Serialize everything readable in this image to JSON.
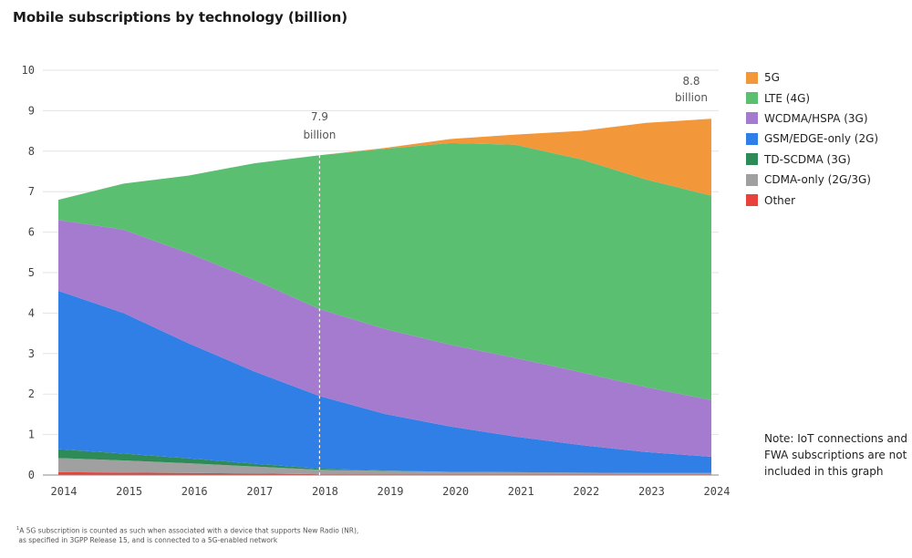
{
  "chart_data": {
    "type": "area",
    "title": "Mobile subscriptions by technology (billion)",
    "xlabel": "",
    "ylabel": "",
    "x": [
      "2014",
      "2015",
      "2016",
      "2017",
      "2018",
      "2019",
      "2020",
      "2021",
      "2022",
      "2023",
      "2024"
    ],
    "ylim": [
      0,
      10
    ],
    "yticks": [
      "0",
      "1",
      "2",
      "3",
      "4",
      "5",
      "6",
      "7",
      "8",
      "9",
      "10"
    ],
    "grid": true,
    "legend_position": "right",
    "stacked": true,
    "series": [
      {
        "name": "Other",
        "color": "#e8423c",
        "values": [
          0.07,
          0.06,
          0.05,
          0.04,
          0.02,
          0.02,
          0.02,
          0.02,
          0.02,
          0.02,
          0.02
        ]
      },
      {
        "name": "CDMA-only (2G/3G)",
        "color": "#a0a0a0",
        "values": [
          0.35,
          0.3,
          0.24,
          0.17,
          0.11,
          0.08,
          0.06,
          0.05,
          0.04,
          0.03,
          0.03
        ]
      },
      {
        "name": "TD-SCDMA (3G)",
        "color": "#2e8b57",
        "values": [
          0.22,
          0.17,
          0.12,
          0.07,
          0.03,
          0.01,
          0.0,
          0.0,
          0.0,
          0.0,
          0.0
        ]
      },
      {
        "name": "GSM/EDGE-only (2G)",
        "color": "#2f7fe6",
        "values": [
          3.91,
          3.47,
          2.84,
          2.28,
          1.79,
          1.4,
          1.12,
          0.88,
          0.68,
          0.52,
          0.4
        ]
      },
      {
        "name": "WCDMA/HSPA (3G)",
        "color": "#a57bd0",
        "values": [
          1.75,
          2.06,
          2.23,
          2.26,
          2.15,
          2.1,
          2.02,
          1.94,
          1.8,
          1.6,
          1.4
        ]
      },
      {
        "name": "LTE (4G)",
        "color": "#5bbf72",
        "values": [
          0.5,
          1.14,
          1.92,
          2.88,
          3.8,
          4.45,
          4.98,
          5.27,
          5.26,
          5.13,
          5.05
        ]
      },
      {
        "name": "5G",
        "color": "#f2973a",
        "values": [
          0,
          0,
          0,
          0,
          0,
          0.02,
          0.1,
          0.25,
          0.7,
          1.4,
          1.9
        ]
      }
    ],
    "annotations": [
      {
        "x": "2018",
        "line1": "7.9",
        "line2": "billion"
      },
      {
        "x": "2024",
        "line1": "8.8",
        "line2": "billion"
      }
    ]
  },
  "legend": {
    "items": [
      {
        "label": "5G",
        "color": "#f2973a"
      },
      {
        "label": "LTE (4G)",
        "color": "#5bbf72"
      },
      {
        "label": "WCDMA/HSPA (3G)",
        "color": "#a57bd0"
      },
      {
        "label": "GSM/EDGE-only (2G)",
        "color": "#2f7fe6"
      },
      {
        "label": "TD-SCDMA (3G)",
        "color": "#2e8b57"
      },
      {
        "label": "CDMA-only (2G/3G)",
        "color": "#a0a0a0"
      },
      {
        "label": "Other",
        "color": "#e8423c"
      }
    ]
  },
  "note": "Note: IoT connections and FWA subscriptions are not included in this graph",
  "footnote": {
    "marker": "1",
    "line1": "A 5G subscription is counted as such when associated with a device that supports New Radio (NR),",
    "line2": "as specified in 3GPP Release 15, and is connected to a 5G-enabled network"
  }
}
